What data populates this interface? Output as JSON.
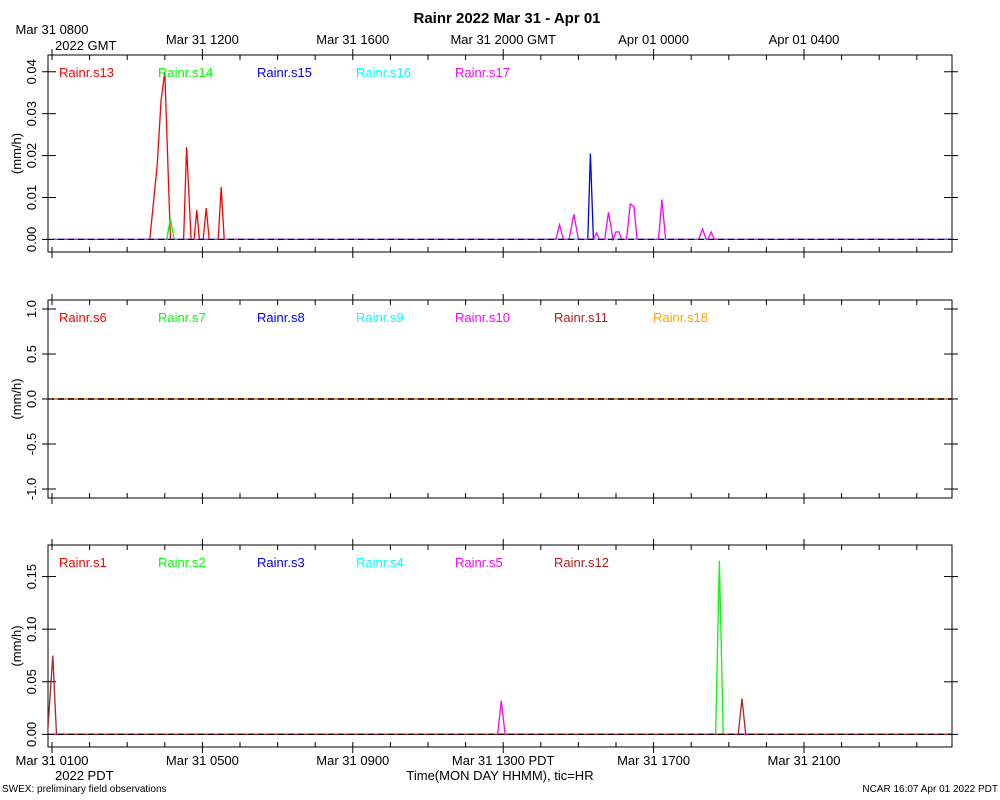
{
  "chart_data": {
    "type": "line",
    "title": "Rainr 2022 Mar 31 - Apr 01",
    "top_axis": {
      "labels": [
        "Mar 31 0800",
        "Mar 31 1200",
        "Mar 31 1600",
        "Mar 31 2000 GMT",
        "Apr 01 0000",
        "Apr 01 0400"
      ],
      "year_label": "2022 GMT"
    },
    "bottom_axis": {
      "labels": [
        "Mar 31 0100",
        "Mar 31 0500",
        "Mar 31 0900",
        "Mar 31 1300 PDT",
        "Mar 31 1700",
        "Mar 31 2100"
      ],
      "year_label": "2022 PDT",
      "xlabel": "Time(MON DAY HHMM), tic=HR",
      "xlim_hours_pdt": [
        0,
        24
      ]
    },
    "footer": {
      "left": "SWEX: preliminary field observations",
      "right": "NCAR 16:07 Apr 01 2022 PDT"
    },
    "panels": [
      {
        "ylabel": "(mm/h)",
        "ylim": [
          -0.003,
          0.044
        ],
        "yticks": [
          0,
          0.01,
          0.02,
          0.03,
          0.04
        ],
        "ytick_labels": [
          "0.00",
          "0.01",
          "0.02",
          "0.03",
          "0.04"
        ],
        "legend_placement": "top-left",
        "series": [
          {
            "name": "Rainr.s13",
            "color": "#ff0000",
            "points": [
              [
                0,
                0
              ],
              [
                2.6,
                0
              ],
              [
                2.8,
                0.018
              ],
              [
                2.9,
                0.033
              ],
              [
                3.0,
                0.04
              ],
              [
                3.15,
                0
              ],
              [
                3.5,
                0
              ],
              [
                3.58,
                0.022
              ],
              [
                3.7,
                0
              ],
              [
                3.78,
                0
              ],
              [
                3.85,
                0.007
              ],
              [
                3.92,
                0
              ],
              [
                4.02,
                0
              ],
              [
                4.1,
                0.0075
              ],
              [
                4.18,
                0
              ],
              [
                4.42,
                0
              ],
              [
                4.5,
                0.0125
              ],
              [
                4.58,
                0
              ],
              [
                24,
                0
              ]
            ]
          },
          {
            "name": "Rainr.s14",
            "color": "#00ff00",
            "points": [
              [
                0,
                0
              ],
              [
                3.05,
                0
              ],
              [
                3.15,
                0.005
              ],
              [
                3.25,
                0
              ],
              [
                24,
                0
              ]
            ]
          },
          {
            "name": "Rainr.s15",
            "color": "#0000ff",
            "points": [
              [
                0,
                0
              ],
              [
                14.25,
                0
              ],
              [
                14.32,
                0.0205
              ],
              [
                14.4,
                0
              ],
              [
                24,
                0
              ]
            ]
          },
          {
            "name": "Rainr.s16",
            "color": "#00ffff",
            "points": [
              [
                0,
                0
              ],
              [
                24,
                0
              ]
            ]
          },
          {
            "name": "Rainr.s17",
            "color": "#ff00ff",
            "points": [
              [
                0,
                0
              ],
              [
                13.4,
                0
              ],
              [
                13.5,
                0.0035
              ],
              [
                13.6,
                0
              ],
              [
                13.75,
                0
              ],
              [
                13.88,
                0.006
              ],
              [
                14.0,
                0
              ],
              [
                14.4,
                0
              ],
              [
                14.48,
                0.0015
              ],
              [
                14.56,
                0
              ],
              [
                14.7,
                0
              ],
              [
                14.8,
                0.0065
              ],
              [
                14.92,
                0
              ],
              [
                15.0,
                0.0018
              ],
              [
                15.08,
                0.0018
              ],
              [
                15.15,
                0
              ],
              [
                15.28,
                0
              ],
              [
                15.38,
                0.0085
              ],
              [
                15.48,
                0.0078
              ],
              [
                15.56,
                0
              ],
              [
                16.13,
                0
              ],
              [
                16.22,
                0.0095
              ],
              [
                16.32,
                0
              ],
              [
                17.2,
                0
              ],
              [
                17.3,
                0.0025
              ],
              [
                17.4,
                0
              ],
              [
                17.45,
                0
              ],
              [
                17.53,
                0.0018
              ],
              [
                17.62,
                0
              ],
              [
                24,
                0
              ]
            ]
          }
        ]
      },
      {
        "ylabel": "(mm/h)",
        "ylim": [
          -1.1,
          1.1
        ],
        "yticks": [
          -1,
          -0.5,
          0,
          0.5,
          1
        ],
        "ytick_labels": [
          "-1.0",
          "-0.5",
          "0.0",
          "0.5",
          "1.0"
        ],
        "legend_placement": "top-left",
        "series": [
          {
            "name": "Rainr.s6",
            "color": "#ff0000",
            "points": [
              [
                0,
                0
              ],
              [
                24,
                0
              ]
            ]
          },
          {
            "name": "Rainr.s7",
            "color": "#00ff00",
            "points": [
              [
                0,
                0
              ],
              [
                24,
                0
              ]
            ]
          },
          {
            "name": "Rainr.s8",
            "color": "#0000ff",
            "points": [
              [
                0,
                0
              ],
              [
                24,
                0
              ]
            ]
          },
          {
            "name": "Rainr.s9",
            "color": "#00ffff",
            "points": [
              [
                0,
                0
              ],
              [
                24,
                0
              ]
            ]
          },
          {
            "name": "Rainr.s10",
            "color": "#ff00ff",
            "points": [
              [
                0,
                0
              ],
              [
                24,
                0
              ]
            ]
          },
          {
            "name": "Rainr.s11",
            "color": "#b22222",
            "points": [
              [
                0,
                0
              ],
              [
                24,
                0
              ]
            ]
          },
          {
            "name": "Rainr.s18",
            "color": "#ffa500",
            "points": [
              [
                0,
                0
              ],
              [
                24,
                0
              ]
            ]
          }
        ]
      },
      {
        "ylabel": "(mm/h)",
        "ylim": [
          -0.012,
          0.18
        ],
        "yticks": [
          0,
          0.05,
          0.1,
          0.15
        ],
        "ytick_labels": [
          "0.00",
          "0.05",
          "0.10",
          "0.15"
        ],
        "legend_placement": "top-left",
        "series": [
          {
            "name": "Rainr.s1",
            "color": "#ff0000",
            "points": [
              [
                0,
                0
              ],
              [
                24,
                0
              ]
            ]
          },
          {
            "name": "Rainr.s2",
            "color": "#00ff00",
            "points": [
              [
                0,
                0
              ],
              [
                17.65,
                0
              ],
              [
                17.75,
                0.165
              ],
              [
                17.85,
                0
              ],
              [
                24,
                0
              ]
            ]
          },
          {
            "name": "Rainr.s3",
            "color": "#0000ff",
            "points": [
              [
                0,
                0
              ],
              [
                24,
                0
              ]
            ]
          },
          {
            "name": "Rainr.s4",
            "color": "#00ffff",
            "points": [
              [
                0,
                0
              ],
              [
                24,
                0
              ]
            ]
          },
          {
            "name": "Rainr.s5",
            "color": "#ff00ff",
            "points": [
              [
                0,
                0
              ],
              [
                11.85,
                0
              ],
              [
                11.95,
                0.032
              ],
              [
                12.05,
                0
              ],
              [
                24,
                0
              ]
            ]
          },
          {
            "name": "Rainr.s12",
            "color": "#b22222",
            "points": [
              [
                -0.2,
                0.017
              ],
              [
                -0.12,
                0
              ],
              [
                0.02,
                0.075
              ],
              [
                0.12,
                0
              ],
              [
                18.25,
                0
              ],
              [
                18.35,
                0.034
              ],
              [
                18.45,
                0
              ],
              [
                24,
                0
              ]
            ]
          }
        ]
      }
    ]
  }
}
